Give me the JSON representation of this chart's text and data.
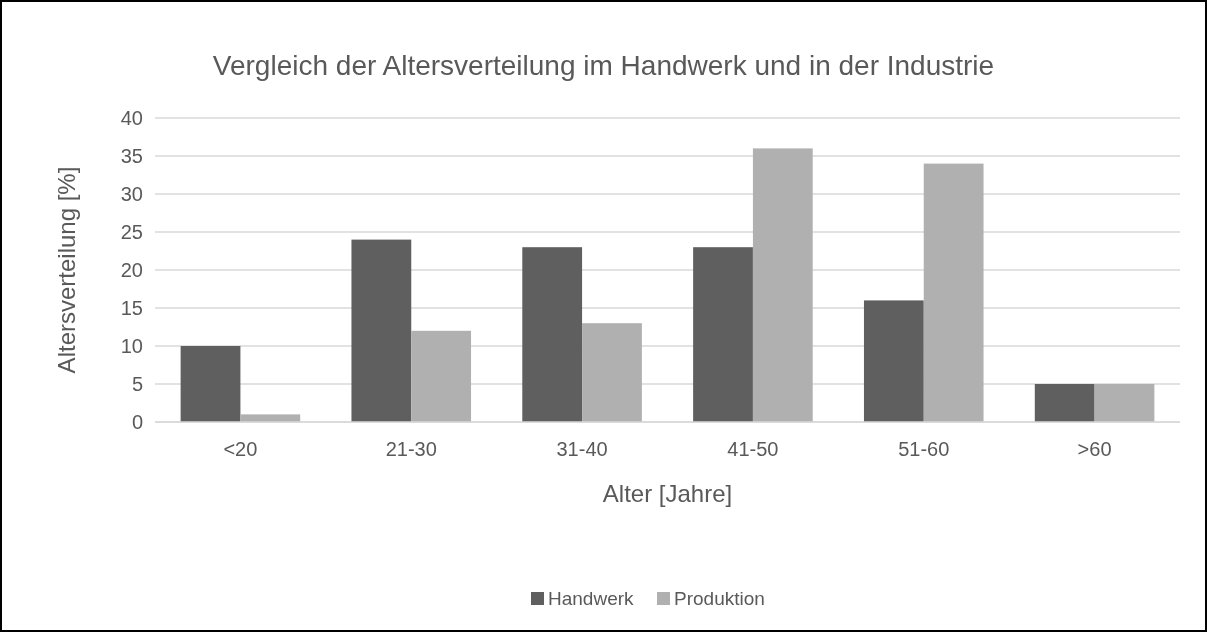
{
  "chart_data": {
    "type": "bar",
    "title": "Vergleich der Altersverteilung im Handwerk und in der Industrie",
    "xlabel": "Alter [Jahre]",
    "ylabel": "Altersverteilung [%]",
    "categories": [
      "<20",
      "21-30",
      "31-40",
      "41-50",
      "51-60",
      ">60"
    ],
    "series": [
      {
        "name": "Handwerk",
        "color": "#5f5f5f",
        "values": [
          10,
          24,
          23,
          23,
          16,
          5
        ]
      },
      {
        "name": "Produktion",
        "color": "#b0b0b0",
        "values": [
          1,
          12,
          13,
          36,
          34,
          5
        ]
      }
    ],
    "ylim": [
      0,
      40
    ],
    "yticks": [
      0,
      5,
      10,
      15,
      20,
      25,
      30,
      35,
      40
    ],
    "grid": "y",
    "legend": "bottom"
  }
}
